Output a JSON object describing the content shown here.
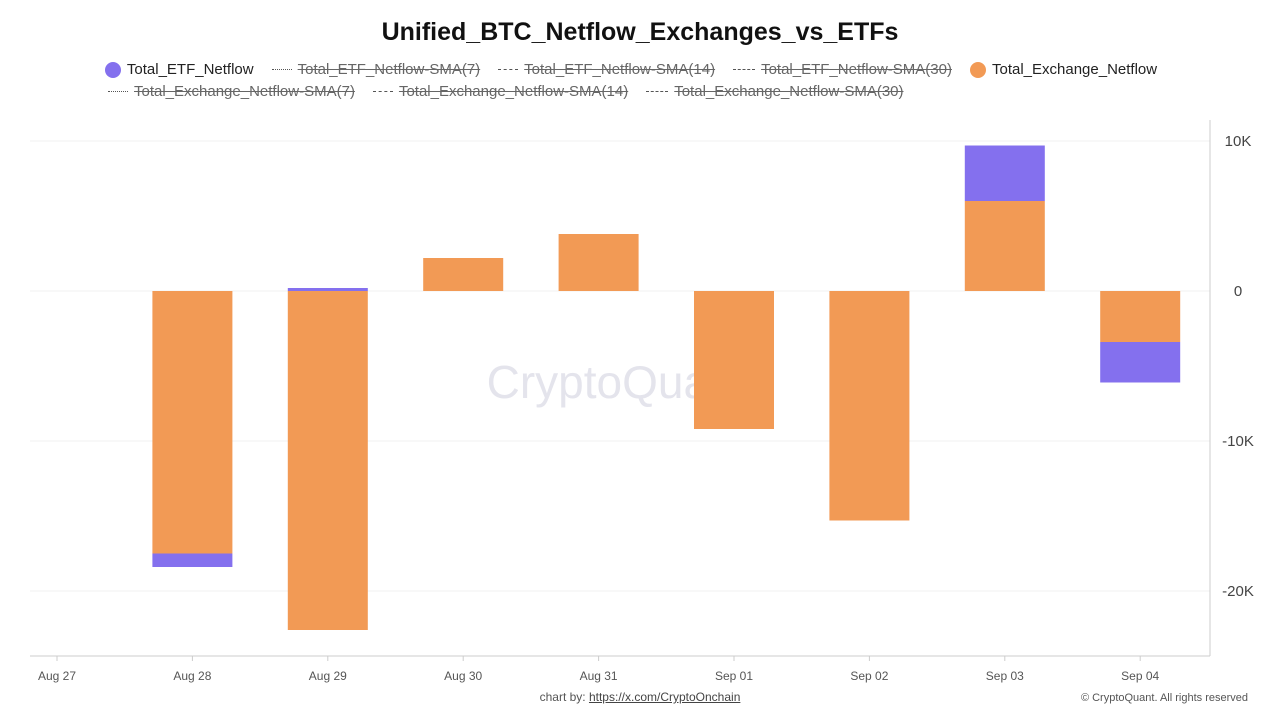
{
  "chart_data": {
    "type": "bar",
    "stacked": true,
    "title": "Unified_BTC_Netflow_Exchanges_vs_ETFs",
    "categories": [
      "Aug 27",
      "Aug 28",
      "Aug 29",
      "Aug 30",
      "Aug 31",
      "Sep 01",
      "Sep 02",
      "Sep 03",
      "Sep 04"
    ],
    "series": [
      {
        "name": "Total_Exchange_Netflow",
        "color": "#F29A55",
        "values": [
          null,
          -17500,
          -22600,
          2200,
          3800,
          -9200,
          -15300,
          6000,
          -3400
        ]
      },
      {
        "name": "Total_ETF_Netflow",
        "color": "#8470EE",
        "values": [
          null,
          -900,
          200,
          0,
          0,
          0,
          0,
          3700,
          -2700
        ]
      }
    ],
    "ylim": [
      -24000,
      11000
    ],
    "yticks": [
      10000,
      0,
      -10000,
      -20000
    ],
    "ytick_labels": [
      "10K",
      "0",
      "-10K",
      "-20K"
    ],
    "xlabel": "",
    "ylabel": ""
  },
  "legend": {
    "row1": [
      {
        "label": "Total_ETF_Netflow",
        "style": "dot",
        "color": "#8470EE",
        "active": true
      },
      {
        "label": "Total_ETF_Netflow-SMA(7)",
        "style": "dotted",
        "active": false
      },
      {
        "label": "Total_ETF_Netflow-SMA(14)",
        "style": "dashed",
        "active": false
      },
      {
        "label": "Total_ETF_Netflow-SMA(30)",
        "style": "longdash",
        "active": false
      },
      {
        "label": "Total_Exchange_Netflow",
        "style": "dot",
        "color": "#F29A55",
        "active": true
      }
    ],
    "row2": [
      {
        "label": "Total_Exchange_Netflow-SMA(7)",
        "style": "dotted",
        "active": false
      },
      {
        "label": "Total_Exchange_Netflow-SMA(14)",
        "style": "dashed",
        "active": false
      },
      {
        "label": "Total_Exchange_Netflow-SMA(30)",
        "style": "longdash",
        "active": false
      }
    ]
  },
  "watermark": "CryptoQuant",
  "footer": {
    "prefix": "chart by: ",
    "link": "https://x.com/CryptoOnchain",
    "copyright": "© CryptoQuant. All rights reserved"
  }
}
